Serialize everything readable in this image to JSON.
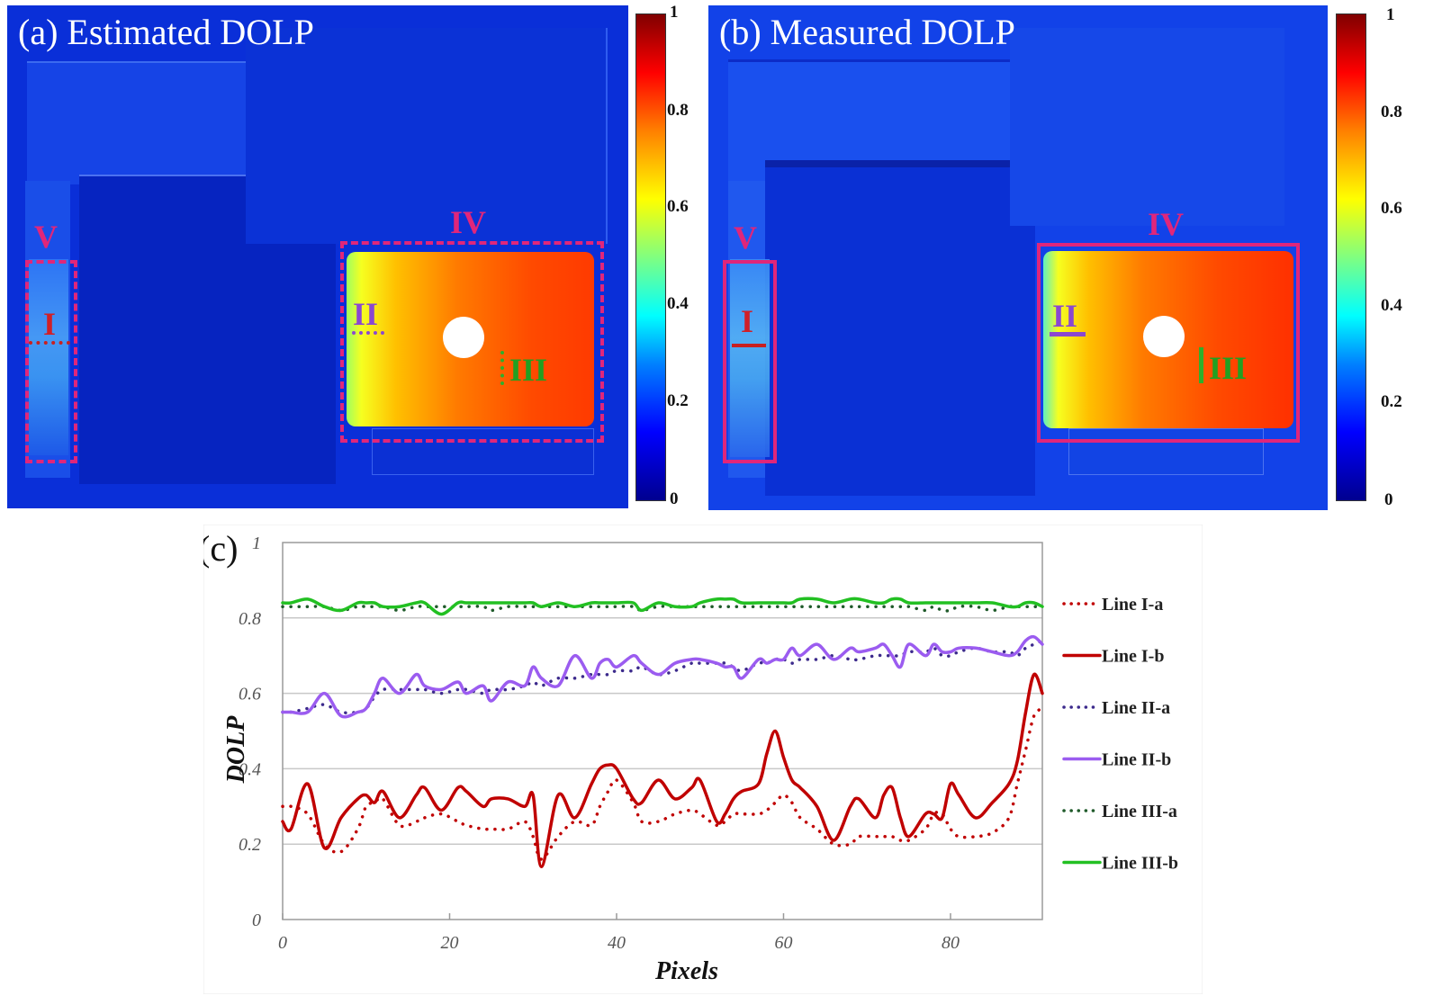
{
  "panels": {
    "a": {
      "title": "(a) Estimated DOLP",
      "region_labels": {
        "I": "I",
        "II": "II",
        "III": "III",
        "IV": "IV",
        "V": "V"
      },
      "box_style": "dashed",
      "colorbar": {
        "ticks": [
          "0",
          "0.2",
          "0.4",
          "0.6",
          "0.8",
          "1"
        ],
        "colormap": "jet",
        "range": [
          0,
          1
        ]
      }
    },
    "b": {
      "title": "(b) Measured DOLP",
      "region_labels": {
        "I": "I",
        "II": "II",
        "III": "III",
        "IV": "IV",
        "V": "V"
      },
      "box_style": "solid",
      "colorbar": {
        "ticks": [
          "0",
          "0.2",
          "0.4",
          "0.6",
          "0.8",
          "1"
        ],
        "colormap": "jet",
        "range": [
          0,
          1
        ]
      }
    }
  },
  "colors": {
    "region_box": "#e0267a",
    "line_I": "#c00000",
    "line_II_a": "#3c2a8c",
    "line_II_b": "#9b5cf0",
    "line_III_a": "#1f5a2a",
    "line_III_b": "#22c022",
    "grid": "#c8c8c8"
  },
  "chart_data": {
    "type": "line",
    "panel_label": "(c)",
    "title": "",
    "xlabel": "Pixels",
    "ylabel": "DOLP",
    "xlim": [
      0,
      91
    ],
    "ylim": [
      0,
      1
    ],
    "xticks": [
      "0",
      "20",
      "40",
      "60",
      "80"
    ],
    "xtick_values": [
      0,
      20,
      40,
      60,
      80
    ],
    "yticks": [
      "0",
      "0.2",
      "0.4",
      "0.6",
      "0.8",
      "1"
    ],
    "ytick_values": [
      0,
      0.2,
      0.4,
      0.6,
      0.8,
      1
    ],
    "grid": "horizontal",
    "legend_position": "right",
    "x": [
      0,
      1,
      3,
      5,
      7,
      9,
      10,
      11,
      12,
      14,
      16,
      17,
      19,
      21,
      22,
      24,
      25,
      27,
      29,
      30,
      31,
      33,
      35,
      37,
      38,
      39,
      40,
      42,
      43,
      45,
      47,
      49,
      50,
      52,
      53,
      54,
      55,
      57,
      58,
      59,
      60,
      61,
      62,
      64,
      66,
      68,
      69,
      71,
      72,
      73,
      74,
      75,
      77,
      78,
      79,
      80,
      81,
      83,
      85,
      87,
      88,
      89,
      90,
      91
    ],
    "series": [
      {
        "name": "Line I-a",
        "style": "dotted",
        "color": "#c00000",
        "values": [
          0.3,
          0.3,
          0.28,
          0.2,
          0.18,
          0.24,
          0.3,
          0.31,
          0.32,
          0.25,
          0.26,
          0.27,
          0.28,
          0.26,
          0.25,
          0.24,
          0.24,
          0.24,
          0.26,
          0.22,
          0.16,
          0.22,
          0.26,
          0.25,
          0.3,
          0.34,
          0.37,
          0.31,
          0.26,
          0.26,
          0.28,
          0.29,
          0.28,
          0.25,
          0.26,
          0.28,
          0.28,
          0.28,
          0.29,
          0.31,
          0.33,
          0.31,
          0.27,
          0.24,
          0.2,
          0.2,
          0.22,
          0.22,
          0.22,
          0.22,
          0.21,
          0.21,
          0.24,
          0.28,
          0.28,
          0.24,
          0.22,
          0.22,
          0.23,
          0.27,
          0.36,
          0.45,
          0.54,
          0.56
        ]
      },
      {
        "name": "Line I-b",
        "style": "solid",
        "color": "#c00000",
        "values": [
          0.26,
          0.24,
          0.36,
          0.19,
          0.27,
          0.32,
          0.33,
          0.31,
          0.34,
          0.27,
          0.33,
          0.35,
          0.29,
          0.35,
          0.34,
          0.3,
          0.32,
          0.32,
          0.3,
          0.33,
          0.14,
          0.33,
          0.27,
          0.36,
          0.4,
          0.41,
          0.4,
          0.32,
          0.31,
          0.37,
          0.32,
          0.35,
          0.37,
          0.26,
          0.28,
          0.32,
          0.34,
          0.36,
          0.44,
          0.5,
          0.43,
          0.37,
          0.35,
          0.3,
          0.21,
          0.3,
          0.32,
          0.27,
          0.33,
          0.35,
          0.27,
          0.22,
          0.28,
          0.28,
          0.27,
          0.36,
          0.33,
          0.27,
          0.31,
          0.36,
          0.42,
          0.55,
          0.65,
          0.6
        ]
      },
      {
        "name": "Line II-a",
        "style": "dotted",
        "color": "#3c2a8c",
        "values": [
          0.55,
          0.55,
          0.56,
          0.57,
          0.55,
          0.55,
          0.56,
          0.59,
          0.61,
          0.61,
          0.61,
          0.61,
          0.6,
          0.61,
          0.61,
          0.6,
          0.61,
          0.61,
          0.62,
          0.63,
          0.62,
          0.64,
          0.64,
          0.65,
          0.65,
          0.65,
          0.66,
          0.66,
          0.67,
          0.65,
          0.66,
          0.68,
          0.68,
          0.68,
          0.68,
          0.67,
          0.66,
          0.68,
          0.68,
          0.69,
          0.69,
          0.68,
          0.69,
          0.69,
          0.7,
          0.69,
          0.69,
          0.7,
          0.7,
          0.7,
          0.7,
          0.71,
          0.71,
          0.72,
          0.7,
          0.7,
          0.71,
          0.72,
          0.71,
          0.71,
          0.7,
          0.72,
          0.73,
          0.74
        ]
      },
      {
        "name": "Line II-b",
        "style": "solid",
        "color": "#9b5cf0",
        "values": [
          0.55,
          0.55,
          0.55,
          0.6,
          0.54,
          0.55,
          0.56,
          0.6,
          0.64,
          0.6,
          0.65,
          0.62,
          0.61,
          0.63,
          0.6,
          0.62,
          0.58,
          0.63,
          0.62,
          0.67,
          0.64,
          0.62,
          0.7,
          0.64,
          0.68,
          0.69,
          0.67,
          0.7,
          0.68,
          0.65,
          0.68,
          0.69,
          0.69,
          0.68,
          0.67,
          0.67,
          0.64,
          0.69,
          0.68,
          0.69,
          0.69,
          0.72,
          0.7,
          0.73,
          0.69,
          0.72,
          0.71,
          0.72,
          0.73,
          0.7,
          0.67,
          0.73,
          0.7,
          0.73,
          0.71,
          0.71,
          0.72,
          0.72,
          0.71,
          0.7,
          0.71,
          0.74,
          0.75,
          0.73
        ]
      },
      {
        "name": "Line III-a",
        "style": "dotted",
        "color": "#1f5a2a",
        "values": [
          0.83,
          0.83,
          0.83,
          0.83,
          0.82,
          0.83,
          0.83,
          0.83,
          0.83,
          0.82,
          0.83,
          0.83,
          0.83,
          0.83,
          0.83,
          0.83,
          0.82,
          0.83,
          0.83,
          0.83,
          0.83,
          0.83,
          0.83,
          0.83,
          0.83,
          0.83,
          0.83,
          0.83,
          0.82,
          0.83,
          0.83,
          0.83,
          0.83,
          0.83,
          0.83,
          0.83,
          0.83,
          0.83,
          0.83,
          0.83,
          0.83,
          0.83,
          0.83,
          0.83,
          0.83,
          0.83,
          0.83,
          0.83,
          0.83,
          0.83,
          0.83,
          0.83,
          0.82,
          0.83,
          0.82,
          0.82,
          0.83,
          0.83,
          0.82,
          0.83,
          0.83,
          0.83,
          0.83,
          0.83
        ]
      },
      {
        "name": "Line III-b",
        "style": "solid",
        "color": "#22c022",
        "values": [
          0.84,
          0.84,
          0.85,
          0.83,
          0.82,
          0.84,
          0.84,
          0.84,
          0.83,
          0.83,
          0.84,
          0.84,
          0.81,
          0.84,
          0.84,
          0.84,
          0.84,
          0.84,
          0.84,
          0.84,
          0.83,
          0.84,
          0.83,
          0.84,
          0.84,
          0.84,
          0.84,
          0.84,
          0.82,
          0.84,
          0.83,
          0.83,
          0.84,
          0.85,
          0.85,
          0.85,
          0.84,
          0.84,
          0.84,
          0.84,
          0.84,
          0.84,
          0.85,
          0.85,
          0.84,
          0.85,
          0.85,
          0.84,
          0.84,
          0.85,
          0.85,
          0.84,
          0.84,
          0.84,
          0.84,
          0.84,
          0.84,
          0.84,
          0.84,
          0.83,
          0.83,
          0.84,
          0.84,
          0.83
        ]
      }
    ]
  }
}
